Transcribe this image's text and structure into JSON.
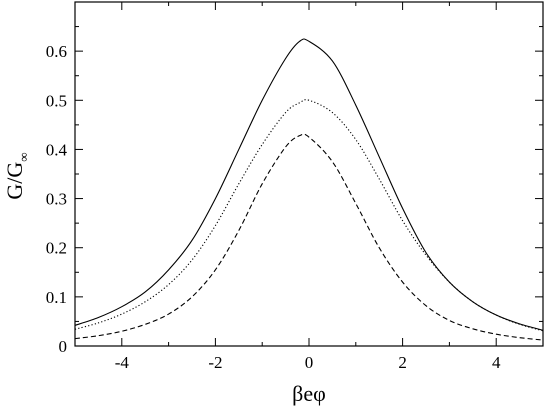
{
  "chart_data": {
    "type": "line",
    "title": "",
    "xlabel": "βeφ",
    "ylabel": "G/G",
    "ylabel_subscript": "∞",
    "xlim": [
      -5,
      5
    ],
    "ylim": [
      0,
      0.7
    ],
    "xticks": [
      -4,
      -2,
      0,
      2,
      4
    ],
    "yticks": [
      0,
      0.1,
      0.2,
      0.3,
      0.4,
      0.5,
      0.6
    ],
    "ytick_labels": [
      "0",
      "0.1",
      "0.2",
      "0.3",
      "0.4",
      "0.5",
      "0.6"
    ],
    "grid": false,
    "legend": "none",
    "x": [
      -5,
      -4.5,
      -4,
      -3.5,
      -3,
      -2.5,
      -2,
      -1.5,
      -1,
      -0.5,
      -0.2,
      0,
      0.5,
      1,
      1.5,
      2,
      2.5,
      3,
      3.5,
      4,
      4.5,
      5
    ],
    "series": [
      {
        "style": "solid",
        "color": "#000000",
        "values": [
          0.042,
          0.058,
          0.08,
          0.11,
          0.155,
          0.215,
          0.3,
          0.4,
          0.5,
          0.585,
          0.62,
          0.62,
          0.58,
          0.49,
          0.385,
          0.28,
          0.19,
          0.13,
          0.09,
          0.063,
          0.045,
          0.032
        ]
      },
      {
        "style": "dotted",
        "color": "#000000",
        "values": [
          0.034,
          0.047,
          0.065,
          0.09,
          0.125,
          0.175,
          0.245,
          0.33,
          0.41,
          0.475,
          0.495,
          0.5,
          0.475,
          0.42,
          0.34,
          0.255,
          0.185,
          0.13,
          0.09,
          0.063,
          0.044,
          0.031
        ]
      },
      {
        "style": "dashed",
        "color": "#000000",
        "values": [
          0.015,
          0.021,
          0.03,
          0.044,
          0.065,
          0.1,
          0.155,
          0.235,
          0.33,
          0.405,
          0.428,
          0.425,
          0.375,
          0.29,
          0.2,
          0.13,
          0.082,
          0.052,
          0.035,
          0.024,
          0.017,
          0.012
        ]
      }
    ]
  }
}
